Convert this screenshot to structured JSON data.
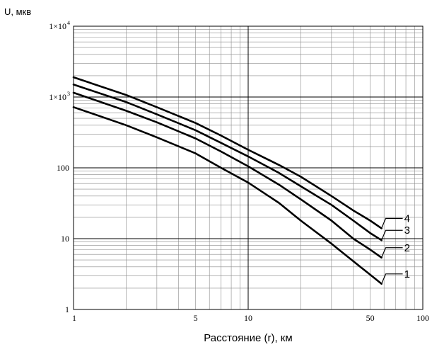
{
  "chart_data": {
    "type": "line",
    "ylabel": "U, мкв",
    "xlabel": "Расстояние (r), км",
    "x_scale": "log",
    "y_scale": "log",
    "xlim": [
      1,
      100
    ],
    "ylim": [
      1,
      10000
    ],
    "grid": true,
    "x_ticks": [
      {
        "value": 1,
        "label": "1"
      },
      {
        "value": 5,
        "label": "5"
      },
      {
        "value": 10,
        "label": "10"
      },
      {
        "value": 50,
        "label": "50"
      },
      {
        "value": 100,
        "label": "100"
      }
    ],
    "y_ticks": [
      {
        "value": 1,
        "label": "1",
        "exp": ""
      },
      {
        "value": 10,
        "label": "10",
        "exp": ""
      },
      {
        "value": 100,
        "label": "100",
        "exp": ""
      },
      {
        "value": 1000,
        "label": "1×10",
        "exp": "3"
      },
      {
        "value": 10000,
        "label": "1×10",
        "exp": "4"
      }
    ],
    "series": [
      {
        "name": "1",
        "x": [
          1,
          2,
          3,
          5,
          7,
          10,
          15,
          20,
          30,
          40,
          50,
          58
        ],
        "y": [
          720,
          400,
          270,
          160,
          100,
          62,
          32,
          18,
          8.5,
          4.8,
          3.1,
          2.3
        ]
      },
      {
        "name": "2",
        "x": [
          1,
          2,
          3,
          5,
          7,
          10,
          15,
          20,
          30,
          40,
          50,
          58
        ],
        "y": [
          1150,
          640,
          440,
          260,
          170,
          105,
          58,
          36,
          18,
          10,
          7,
          5.4
        ]
      },
      {
        "name": "3",
        "x": [
          1,
          2,
          3,
          5,
          7,
          10,
          15,
          20,
          30,
          40,
          50,
          58
        ],
        "y": [
          1500,
          850,
          570,
          340,
          225,
          145,
          85,
          55,
          30,
          18,
          12,
          9.5
        ]
      },
      {
        "name": "4",
        "x": [
          1,
          2,
          3,
          5,
          7,
          10,
          15,
          20,
          30,
          40,
          50,
          58
        ],
        "y": [
          1900,
          1070,
          720,
          430,
          285,
          180,
          110,
          75,
          40,
          25,
          18,
          14
        ]
      }
    ]
  }
}
